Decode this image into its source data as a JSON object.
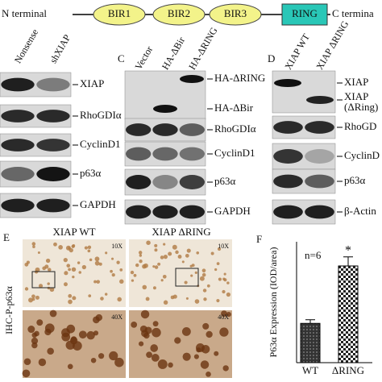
{
  "domain_diagram": {
    "n_label": "N terminal",
    "domains": [
      "BIR1",
      "BIR2",
      "BIR3",
      "RING"
    ],
    "c_label": "C termina"
  },
  "panel_b": {
    "lanes": [
      "Nonsense",
      "shXIAP"
    ],
    "bands": [
      "XIAP",
      "RhoGDIα",
      "CyclinD1",
      "p63α",
      "GAPDH"
    ]
  },
  "panel_c": {
    "letter": "C",
    "lanes": [
      "Vector",
      "HA-ΔBir",
      "HA-ΔRING"
    ],
    "bands": [
      "HA-ΔRING",
      "HA-ΔBir",
      "RhoGDIα",
      "CyclinD1",
      "p63α",
      "GAPDH"
    ]
  },
  "panel_d": {
    "letter": "D",
    "lanes": [
      "XIAP WT",
      "XIAP ΔRING"
    ],
    "bands": [
      "XIAP",
      [
        "XIAP",
        "(ΔRing)"
      ],
      "RhoGD",
      "CyclinD",
      "p63α",
      "β-Actin"
    ]
  },
  "panel_e": {
    "letter": "E",
    "columns": [
      "XIAP WT",
      "XIAP ΔRING"
    ],
    "row_label": "IHC-P-p63α",
    "magnifications": [
      "10X",
      "10X",
      "40X",
      "40X"
    ]
  },
  "chart_data": {
    "type": "bar",
    "letter": "F",
    "annotation": "n=6",
    "significance": "*",
    "y_label": "P63α Expression (IOD/area)",
    "categories": [
      "WT",
      "ΔRING"
    ],
    "values": [
      0.13,
      0.32
    ],
    "errors": [
      0.012,
      0.03
    ],
    "ylim": [
      0,
      0.4
    ]
  }
}
